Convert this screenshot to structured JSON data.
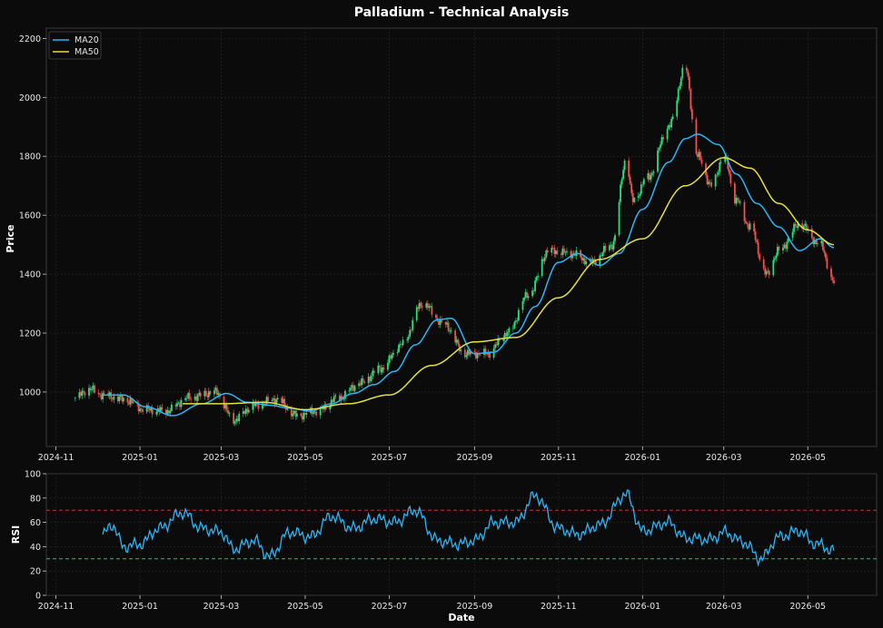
{
  "figure": {
    "title": "Palladium - Technical Analysis",
    "background": "#0b0b0b",
    "axes_background": "#0b0b0b"
  },
  "chart_data": [
    {
      "type": "candlestick",
      "name": "price-panel",
      "title": "Palladium - Technical Analysis",
      "xlabel": "",
      "ylabel": "Price",
      "ylim": [
        815,
        2235
      ],
      "xlim": [
        "2024-10-25",
        "2026-06-20"
      ],
      "x_tick_labels": [
        "2024-11",
        "2025-01",
        "2025-03",
        "2025-05",
        "2025-07",
        "2025-09",
        "2025-11",
        "2026-01",
        "2026-03",
        "2026-05"
      ],
      "y_ticks": [
        1000,
        1200,
        1400,
        1600,
        1800,
        2000,
        2200
      ],
      "grid": true,
      "legend": {
        "placement": "top-left",
        "entries": [
          "MA20",
          "MA50"
        ]
      },
      "colors": {
        "up": "#26e07f",
        "down": "#ef5350",
        "ma20": "#29b6f6",
        "ma50": "#e6e03a"
      },
      "price_anchors": [
        [
          "2024-11-15",
          980
        ],
        [
          "2024-11-25",
          1010
        ],
        [
          "2024-12-05",
          990
        ],
        [
          "2024-12-20",
          975
        ],
        [
          "2025-01-05",
          940
        ],
        [
          "2025-01-20",
          935
        ],
        [
          "2025-02-05",
          980
        ],
        [
          "2025-02-25",
          1000
        ],
        [
          "2025-03-10",
          905
        ],
        [
          "2025-03-25",
          955
        ],
        [
          "2025-04-10",
          975
        ],
        [
          "2025-04-25",
          920
        ],
        [
          "2025-05-10",
          935
        ],
        [
          "2025-05-25",
          980
        ],
        [
          "2025-06-10",
          1030
        ],
        [
          "2025-06-25",
          1080
        ],
        [
          "2025-07-10",
          1160
        ],
        [
          "2025-07-25",
          1300
        ],
        [
          "2025-08-10",
          1230
        ],
        [
          "2025-08-25",
          1130
        ],
        [
          "2025-09-10",
          1130
        ],
        [
          "2025-09-25",
          1200
        ],
        [
          "2025-10-10",
          1330
        ],
        [
          "2025-10-25",
          1480
        ],
        [
          "2025-11-10",
          1470
        ],
        [
          "2025-11-25",
          1440
        ],
        [
          "2025-12-10",
          1500
        ],
        [
          "2025-12-20",
          1790
        ],
        [
          "2025-12-25",
          1650
        ],
        [
          "2026-01-05",
          1730
        ],
        [
          "2026-01-20",
          1900
        ],
        [
          "2026-02-01",
          2100
        ],
        [
          "2026-02-10",
          1800
        ],
        [
          "2026-02-20",
          1700
        ],
        [
          "2026-03-01",
          1800
        ],
        [
          "2026-03-10",
          1650
        ],
        [
          "2026-03-20",
          1560
        ],
        [
          "2026-04-01",
          1400
        ],
        [
          "2026-04-10",
          1480
        ],
        [
          "2026-04-25",
          1570
        ],
        [
          "2026-05-10",
          1500
        ],
        [
          "2026-05-20",
          1370
        ]
      ],
      "ma20_anchors": [
        [
          "2024-12-05",
          990
        ],
        [
          "2024-12-20",
          990
        ],
        [
          "2025-01-05",
          950
        ],
        [
          "2025-01-25",
          920
        ],
        [
          "2025-02-15",
          960
        ],
        [
          "2025-03-05",
          995
        ],
        [
          "2025-03-20",
          965
        ],
        [
          "2025-04-05",
          955
        ],
        [
          "2025-04-20",
          945
        ],
        [
          "2025-05-05",
          935
        ],
        [
          "2025-05-20",
          960
        ],
        [
          "2025-06-05",
          995
        ],
        [
          "2025-06-20",
          1025
        ],
        [
          "2025-07-05",
          1070
        ],
        [
          "2025-07-20",
          1160
        ],
        [
          "2025-08-05",
          1245
        ],
        [
          "2025-08-15",
          1250
        ],
        [
          "2025-09-01",
          1130
        ],
        [
          "2025-09-15",
          1135
        ],
        [
          "2025-10-01",
          1200
        ],
        [
          "2025-10-15",
          1290
        ],
        [
          "2025-11-01",
          1440
        ],
        [
          "2025-11-15",
          1470
        ],
        [
          "2025-12-01",
          1430
        ],
        [
          "2025-12-15",
          1470
        ],
        [
          "2026-01-01",
          1620
        ],
        [
          "2026-01-20",
          1780
        ],
        [
          "2026-02-01",
          1860
        ],
        [
          "2026-02-10",
          1875
        ],
        [
          "2026-02-25",
          1840
        ],
        [
          "2026-03-10",
          1740
        ],
        [
          "2026-03-25",
          1640
        ],
        [
          "2026-04-10",
          1560
        ],
        [
          "2026-04-25",
          1480
        ],
        [
          "2026-05-10",
          1520
        ],
        [
          "2026-05-20",
          1490
        ]
      ],
      "ma50_anchors": [
        [
          "2025-02-01",
          960
        ],
        [
          "2025-03-01",
          960
        ],
        [
          "2025-04-01",
          965
        ],
        [
          "2025-05-01",
          940
        ],
        [
          "2025-06-01",
          960
        ],
        [
          "2025-07-01",
          990
        ],
        [
          "2025-08-01",
          1090
        ],
        [
          "2025-09-01",
          1170
        ],
        [
          "2025-10-01",
          1185
        ],
        [
          "2025-11-01",
          1320
        ],
        [
          "2025-12-01",
          1450
        ],
        [
          "2026-01-01",
          1520
        ],
        [
          "2026-02-01",
          1700
        ],
        [
          "2026-03-01",
          1795
        ],
        [
          "2026-03-20",
          1760
        ],
        [
          "2026-04-10",
          1640
        ],
        [
          "2026-05-01",
          1550
        ],
        [
          "2026-05-20",
          1500
        ]
      ]
    },
    {
      "type": "line",
      "name": "rsi-panel",
      "xlabel": "Date",
      "ylabel": "RSI",
      "ylim": [
        0,
        100
      ],
      "xlim": [
        "2024-10-25",
        "2026-06-20"
      ],
      "x_tick_labels": [
        "2024-11",
        "2025-01",
        "2025-03",
        "2025-05",
        "2025-07",
        "2025-09",
        "2025-11",
        "2026-01",
        "2026-03",
        "2026-05"
      ],
      "y_ticks": [
        0,
        20,
        40,
        60,
        80,
        100
      ],
      "grid": true,
      "reference_lines": [
        {
          "value": 70,
          "color": "#c0392b",
          "style": "dashed"
        },
        {
          "value": 30,
          "color": "#27c46a",
          "style": "dashed"
        }
      ],
      "colors": {
        "rsi": "#29b6f6"
      },
      "rsi_anchors": [
        [
          "2024-12-05",
          50
        ],
        [
          "2024-12-12",
          58
        ],
        [
          "2024-12-20",
          40
        ],
        [
          "2025-01-01",
          42
        ],
        [
          "2025-01-15",
          55
        ],
        [
          "2025-02-01",
          68
        ],
        [
          "2025-02-15",
          55
        ],
        [
          "2025-03-01",
          52
        ],
        [
          "2025-03-10",
          38
        ],
        [
          "2025-03-25",
          45
        ],
        [
          "2025-04-05",
          32
        ],
        [
          "2025-04-20",
          52
        ],
        [
          "2025-05-05",
          48
        ],
        [
          "2025-05-20",
          65
        ],
        [
          "2025-06-05",
          55
        ],
        [
          "2025-06-20",
          63
        ],
        [
          "2025-07-05",
          60
        ],
        [
          "2025-07-20",
          70
        ],
        [
          "2025-08-05",
          45
        ],
        [
          "2025-08-20",
          42
        ],
        [
          "2025-09-01",
          45
        ],
        [
          "2025-09-15",
          60
        ],
        [
          "2025-10-01",
          60
        ],
        [
          "2025-10-15",
          82
        ],
        [
          "2025-11-01",
          55
        ],
        [
          "2025-11-15",
          50
        ],
        [
          "2025-12-01",
          58
        ],
        [
          "2025-12-20",
          83
        ],
        [
          "2026-01-01",
          53
        ],
        [
          "2026-01-20",
          60
        ],
        [
          "2026-02-01",
          47
        ],
        [
          "2026-02-20",
          46
        ],
        [
          "2026-03-01",
          52
        ],
        [
          "2026-03-15",
          44
        ],
        [
          "2026-03-28",
          30
        ],
        [
          "2026-04-10",
          48
        ],
        [
          "2026-04-25",
          53
        ],
        [
          "2026-05-05",
          43
        ],
        [
          "2026-05-20",
          37
        ]
      ]
    }
  ]
}
